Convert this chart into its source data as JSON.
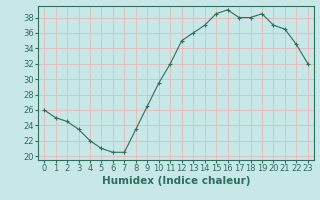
{
  "x": [
    0,
    1,
    2,
    3,
    4,
    5,
    6,
    7,
    8,
    9,
    10,
    11,
    12,
    13,
    14,
    15,
    16,
    17,
    18,
    19,
    20,
    21,
    22,
    23
  ],
  "y": [
    26,
    25,
    24.5,
    23.5,
    22,
    21,
    20.5,
    20.5,
    23.5,
    26.5,
    29.5,
    32,
    35,
    36,
    37,
    38.5,
    39,
    38,
    38,
    38.5,
    37,
    36.5,
    34.5,
    32
  ],
  "line_color": "#2d6e5e",
  "marker": "+",
  "marker_size": 3,
  "bg_color": "#c8e8e8",
  "grid_color": "#e8b8b8",
  "xlabel": "Humidex (Indice chaleur)",
  "xlim": [
    -0.5,
    23.5
  ],
  "ylim": [
    19.5,
    39.5
  ],
  "yticks": [
    20,
    22,
    24,
    26,
    28,
    30,
    32,
    34,
    36,
    38
  ],
  "xticks": [
    0,
    1,
    2,
    3,
    4,
    5,
    6,
    7,
    8,
    9,
    10,
    11,
    12,
    13,
    14,
    15,
    16,
    17,
    18,
    19,
    20,
    21,
    22,
    23
  ],
  "tick_label_fontsize": 6,
  "xlabel_fontsize": 7.5
}
